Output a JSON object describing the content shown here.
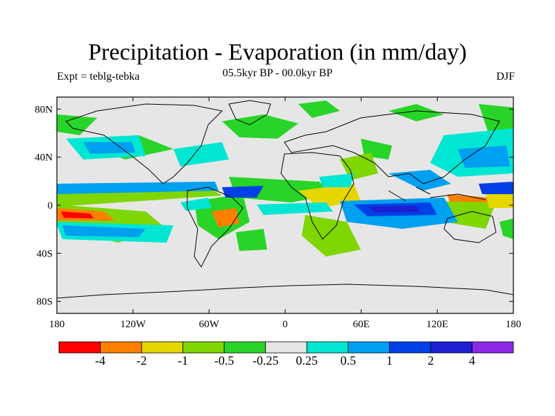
{
  "title": "Precipitation - Evaporation (in mm/day)",
  "left_string": "Expt = teblg-tebka",
  "center_string": "05.5kyr BP - 00.0kyr BP",
  "right_string": "DJF",
  "x_ticks": [
    "180",
    "120W",
    "60W",
    "0",
    "60E",
    "120E",
    "180"
  ],
  "y_ticks": [
    "80N",
    "40N",
    "0",
    "40S",
    "80S"
  ],
  "colorbar": {
    "colors": [
      "#ff0000",
      "#ff7f00",
      "#e6d600",
      "#7fd600",
      "#28d428",
      "#e6e6e6",
      "#00e6d2",
      "#00a0f0",
      "#0040e6",
      "#1e1ed2",
      "#8c28e6"
    ],
    "labels": [
      "-4",
      "-2",
      "-1",
      "-0.5",
      "-0.25",
      "0.25",
      "0.5",
      "1",
      "2",
      "4"
    ]
  }
}
